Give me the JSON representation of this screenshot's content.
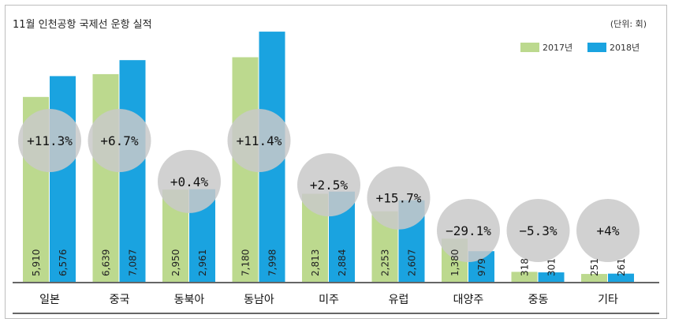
{
  "header": {
    "title": "11월 인천공항 국제선 운항 실적",
    "unit": "(단위: 회)"
  },
  "colors": {
    "series_2017": "#bcd98e",
    "series_2018": "#1aa3e0",
    "circle": "#c9c9c9",
    "circle_dark": "#a9a9a9"
  },
  "chart_data": {
    "type": "bar",
    "categories": [
      "일본",
      "중국",
      "동북아",
      "동남아",
      "미주",
      "유럽",
      "대양주",
      "중동",
      "기타"
    ],
    "series": [
      {
        "name": "2017년",
        "values": [
          5910,
          6639,
          2950,
          7180,
          2813,
          2253,
          1380,
          318,
          251
        ],
        "labels": [
          "5,910",
          "6,639",
          "2,950",
          "7,180",
          "2,813",
          "2,253",
          "1,380",
          "318",
          "251"
        ]
      },
      {
        "name": "2018년",
        "values": [
          6576,
          7087,
          2961,
          7998,
          2884,
          2607,
          979,
          301,
          261
        ],
        "labels": [
          "6,576",
          "7,087",
          "2,961",
          "7,998",
          "2,884",
          "2,607",
          "979",
          "301",
          "261"
        ]
      }
    ],
    "changes": [
      "+11.3%",
      "+6.7%",
      "+0.4%",
      "+11.4%",
      "+2.5%",
      "+15.7%",
      "−29.1%",
      "−5.3%",
      "+4%"
    ],
    "ylim": [
      0,
      8000
    ],
    "legend": "top-right"
  }
}
